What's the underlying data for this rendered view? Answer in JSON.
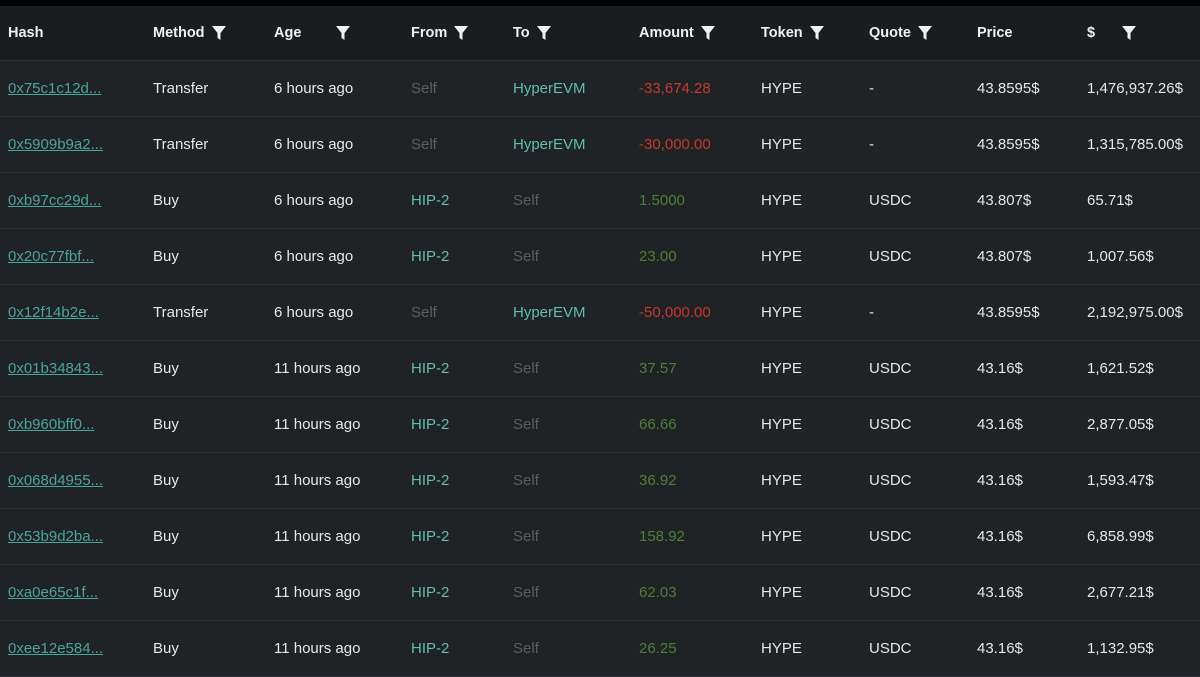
{
  "table": {
    "headers": [
      {
        "label": "Hash",
        "filter": false
      },
      {
        "label": "Method",
        "filter": true
      },
      {
        "label": "Age",
        "filter": true
      },
      {
        "label": "From",
        "filter": true
      },
      {
        "label": "To",
        "filter": true
      },
      {
        "label": "Amount",
        "filter": true
      },
      {
        "label": "Token",
        "filter": true
      },
      {
        "label": "Quote",
        "filter": true
      },
      {
        "label": "Price",
        "filter": false
      },
      {
        "label": "$",
        "filter": true
      }
    ],
    "rows": [
      [
        "0x75c1c12d...",
        "Transfer",
        "6 hours ago",
        "Self",
        "HyperEVM",
        "-33,674.28",
        "HYPE",
        "-",
        "43.8595$",
        "1,476,937.26$"
      ],
      [
        "0x5909b9a2...",
        "Transfer",
        "6 hours ago",
        "Self",
        "HyperEVM",
        "-30,000.00",
        "HYPE",
        "-",
        "43.8595$",
        "1,315,785.00$"
      ],
      [
        "0xb97cc29d...",
        "Buy",
        "6 hours ago",
        "HIP-2",
        "Self",
        "1.5000",
        "HYPE",
        "USDC",
        "43.807$",
        "65.71$"
      ],
      [
        "0x20c77fbf...",
        "Buy",
        "6 hours ago",
        "HIP-2",
        "Self",
        "23.00",
        "HYPE",
        "USDC",
        "43.807$",
        "1,007.56$"
      ],
      [
        "0x12f14b2e...",
        "Transfer",
        "6 hours ago",
        "Self",
        "HyperEVM",
        "-50,000.00",
        "HYPE",
        "-",
        "43.8595$",
        "2,192,975.00$"
      ],
      [
        "0x01b34843...",
        "Buy",
        "11 hours ago",
        "HIP-2",
        "Self",
        "37.57",
        "HYPE",
        "USDC",
        "43.16$",
        "1,621.52$"
      ],
      [
        "0xb960bff0...",
        "Buy",
        "11 hours ago",
        "HIP-2",
        "Self",
        "66.66",
        "HYPE",
        "USDC",
        "43.16$",
        "2,877.05$"
      ],
      [
        "0x068d4955...",
        "Buy",
        "11 hours ago",
        "HIP-2",
        "Self",
        "36.92",
        "HYPE",
        "USDC",
        "43.16$",
        "1,593.47$"
      ],
      [
        "0x53b9d2ba...",
        "Buy",
        "11 hours ago",
        "HIP-2",
        "Self",
        "158.92",
        "HYPE",
        "USDC",
        "43.16$",
        "6,858.99$"
      ],
      [
        "0xa0e65c1f...",
        "Buy",
        "11 hours ago",
        "HIP-2",
        "Self",
        "62.03",
        "HYPE",
        "USDC",
        "43.16$",
        "2,677.21$"
      ],
      [
        "0xee12e584...",
        "Buy",
        "11 hours ago",
        "HIP-2",
        "Self",
        "26.25",
        "HYPE",
        "USDC",
        "43.16$",
        "1,132.95$"
      ]
    ]
  }
}
